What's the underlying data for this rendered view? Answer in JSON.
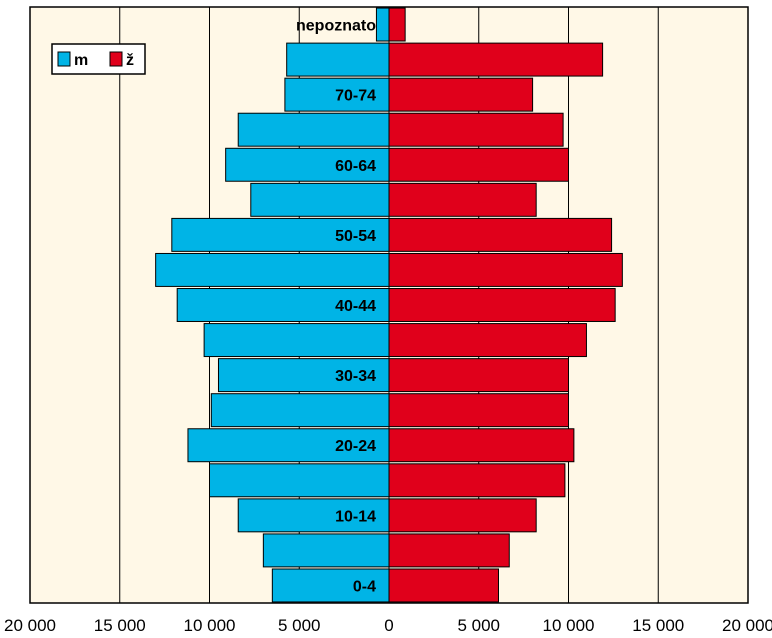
{
  "chart_data": {
    "type": "bar",
    "orientation": "horizontal",
    "layout": "population-pyramid",
    "categories": [
      "0-4",
      "5-9",
      "10-14",
      "15-19",
      "20-24",
      "25-29",
      "30-34",
      "35-39",
      "40-44",
      "45-49",
      "50-54",
      "55-59",
      "60-64",
      "65-69",
      "70-74",
      "75+",
      "nepoznato"
    ],
    "category_labels_shown": [
      "0-4",
      "",
      "10-14",
      "",
      "20-24",
      "",
      "30-34",
      "",
      "40-44",
      "",
      "50-54",
      "",
      "60-64",
      "",
      "70-74",
      "",
      "nepoznato"
    ],
    "series": [
      {
        "name": "m",
        "side": "left",
        "color": "#00B4E6",
        "values": [
          6500,
          7000,
          8400,
          10000,
          11200,
          9900,
          9500,
          10300,
          11800,
          13000,
          12100,
          7700,
          9100,
          8400,
          5800,
          5700,
          700
        ]
      },
      {
        "name": "ž",
        "side": "right",
        "color": "#E0001B",
        "values": [
          6100,
          6700,
          8200,
          9800,
          10300,
          10000,
          10000,
          11000,
          12600,
          13000,
          12400,
          8200,
          10000,
          9700,
          8000,
          11900,
          900
        ]
      }
    ],
    "xlim": [
      -20000,
      20000
    ],
    "x_ticks": [
      -20000,
      -15000,
      -10000,
      -5000,
      0,
      5000,
      10000,
      15000,
      20000
    ],
    "x_tick_labels": [
      "20 000",
      "15 000",
      "10 000",
      "5 000",
      "0",
      "5 000",
      "10 000",
      "15 000",
      "20 000"
    ],
    "grid": "vertical",
    "legend": "top-left",
    "plot_background": "#FFF8E7"
  }
}
